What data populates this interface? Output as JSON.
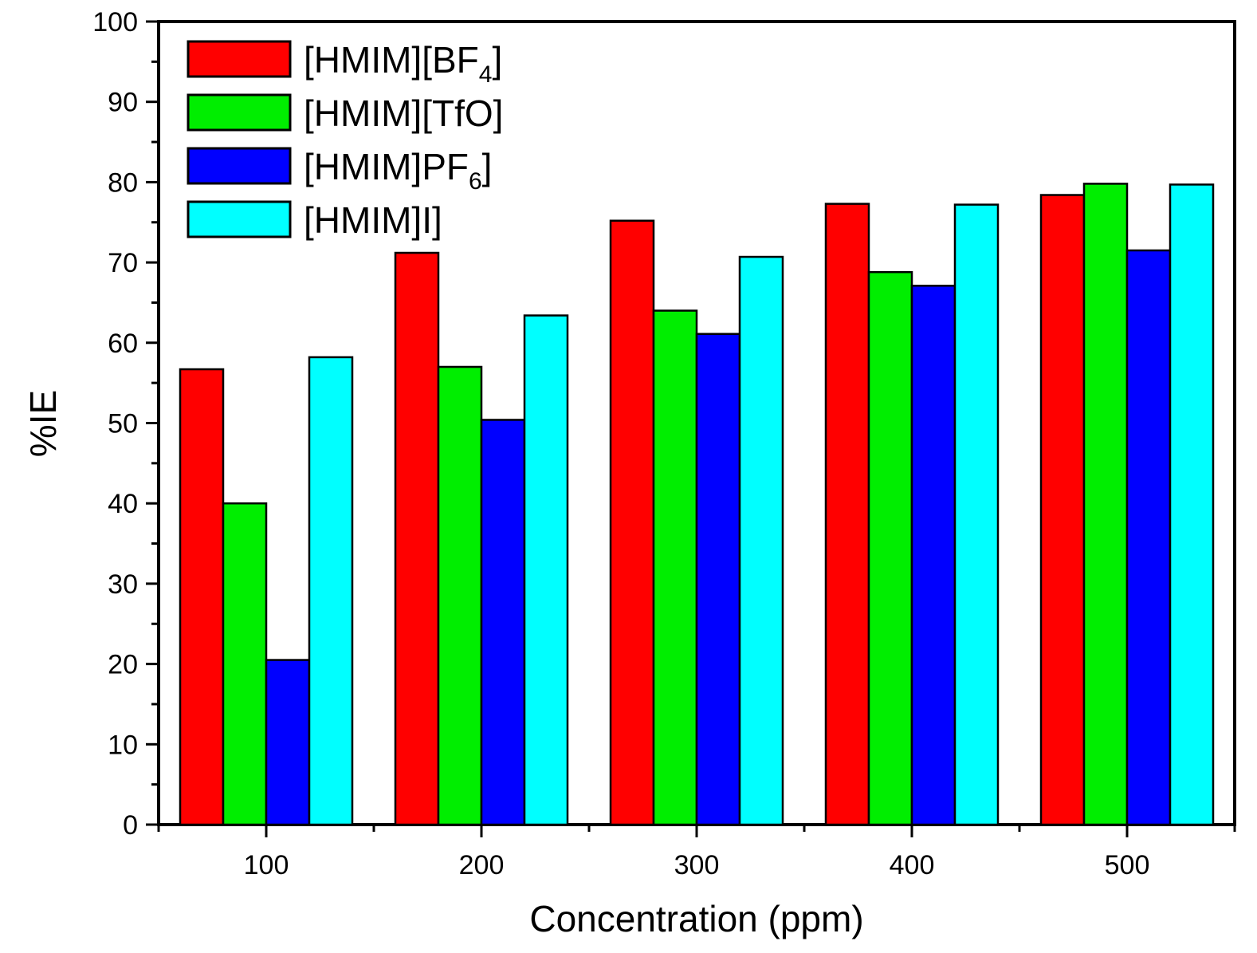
{
  "chart_data": {
    "type": "bar",
    "title": "",
    "xlabel": "Concentration (ppm)",
    "ylabel": "%IE",
    "ylim": [
      0,
      100
    ],
    "yticks": [
      0,
      10,
      20,
      30,
      40,
      50,
      60,
      70,
      80,
      90,
      100
    ],
    "categories": [
      "100",
      "200",
      "300",
      "400",
      "500"
    ],
    "legend_position": "top-left",
    "series": [
      {
        "name": "[HMIM][BF4]",
        "label_main": "[HMIM][BF",
        "label_sub": "4",
        "label_end": "]",
        "color": "#ff0000",
        "values": [
          56.7,
          71.2,
          75.2,
          77.3,
          78.4
        ]
      },
      {
        "name": "[HMIM][TfO]",
        "label_main": "[HMIM][TfO]",
        "label_sub": "",
        "label_end": "",
        "color": "#00ee00",
        "values": [
          40.0,
          57.0,
          64.0,
          68.8,
          79.8
        ]
      },
      {
        "name": "[HMIM]PF6]",
        "label_main": "[HMIM]PF",
        "label_sub": "6",
        "label_end": "]",
        "color": "#0000ff",
        "values": [
          20.5,
          50.4,
          61.1,
          67.1,
          71.5
        ]
      },
      {
        "name": "[HMIM]I]",
        "label_main": "[HMIM]I]",
        "label_sub": "",
        "label_end": "",
        "color": "#00ffff",
        "values": [
          58.2,
          63.4,
          70.7,
          77.2,
          79.7
        ]
      }
    ]
  }
}
